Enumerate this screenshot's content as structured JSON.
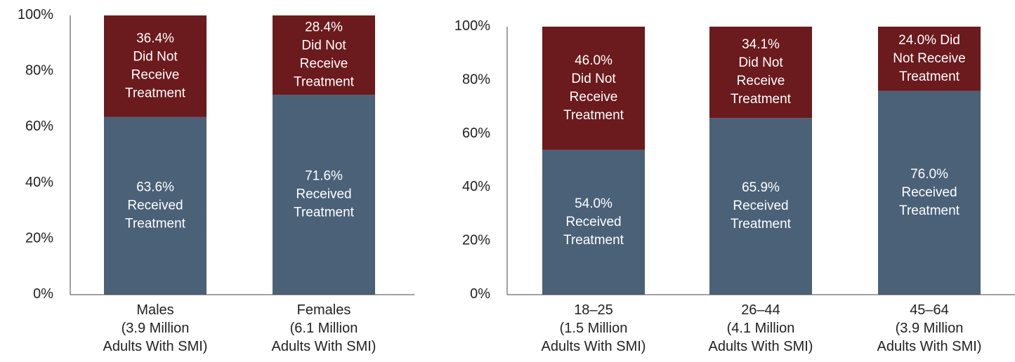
{
  "chart_data": [
    {
      "type": "stacked_bar",
      "categories": [
        "Males\n(3.9 Million\nAdults With SMI)",
        "Females\n(6.1 Million\nAdults With SMI)"
      ],
      "series": [
        {
          "color": "#4a6178",
          "values": [
            63.6,
            71.6
          ],
          "value_labels": [
            "63.6%\nReceived\nTreatment",
            "71.6%\nReceived\nTreatment"
          ]
        },
        {
          "color": "#6b1a1d",
          "values": [
            36.4,
            28.4
          ],
          "value_labels": [
            "36.4%\nDid Not\nReceive\nTreatment",
            "28.4%\nDid Not\nReceive\nTreatment"
          ]
        }
      ],
      "ylim": [
        0,
        100
      ],
      "yticks": [
        {
          "value": 0,
          "label": "0%"
        },
        {
          "value": 20,
          "label": "20%"
        },
        {
          "value": 40,
          "label": "40%"
        },
        {
          "value": 60,
          "label": "60%"
        },
        {
          "value": 80,
          "label": "80%"
        },
        {
          "value": 100,
          "label": "100%"
        }
      ]
    },
    {
      "type": "stacked_bar",
      "categories": [
        "18–25\n(1.5 Million\nAdults With SMI)",
        "26–44\n(4.1 Million\nAdults With SMI)",
        "45–64\n(3.9 Million\nAdults With SMI)"
      ],
      "series": [
        {
          "color": "#4a6178",
          "values": [
            54.0,
            65.9,
            76.0
          ],
          "value_labels": [
            "54.0%\nReceived\nTreatment",
            "65.9%\nReceived\nTreatment",
            "76.0%\nReceived\nTreatment"
          ]
        },
        {
          "color": "#6b1a1d",
          "values": [
            46.0,
            34.1,
            24.0
          ],
          "value_labels": [
            "46.0%\nDid Not\nReceive\nTreatment",
            "34.1%\nDid Not\nReceive\nTreatment",
            "24.0% Did\nNot Receive\nTreatment"
          ]
        }
      ],
      "ylim": [
        0,
        100
      ],
      "yticks": [
        {
          "value": 0,
          "label": "0%"
        },
        {
          "value": 20,
          "label": "20%"
        },
        {
          "value": 40,
          "label": "40%"
        },
        {
          "value": 60,
          "label": "60%"
        },
        {
          "value": 80,
          "label": "80%"
        },
        {
          "value": 100,
          "label": "100%"
        }
      ]
    }
  ]
}
